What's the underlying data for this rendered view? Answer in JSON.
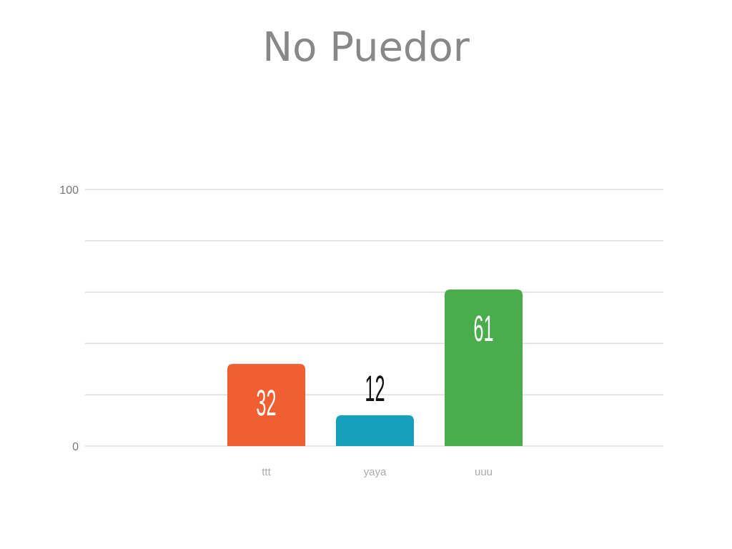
{
  "chart_data": {
    "type": "bar",
    "title": "No Puedor",
    "categories": [
      "ttt",
      "yaya",
      "uuu"
    ],
    "values": [
      32,
      12,
      61
    ],
    "colors": [
      "#f15e32",
      "#16a0bc",
      "#4aad4c"
    ],
    "ylim": [
      0,
      100
    ],
    "yticks": [
      0,
      100
    ],
    "grid_step": 20,
    "grid": true,
    "xlabel": "",
    "ylabel": ""
  }
}
